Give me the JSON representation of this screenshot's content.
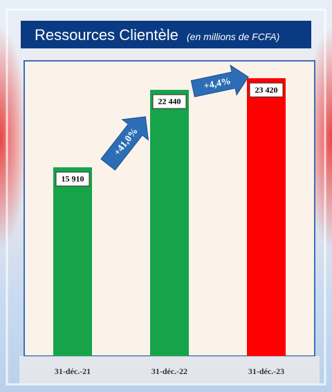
{
  "chart_data": {
    "type": "bar",
    "title": "Ressources Clientèle",
    "subtitle": "(en millions de FCFA)",
    "categories": [
      "31-déc.-21",
      "31-déc.-22",
      "31-déc.-23"
    ],
    "values": [
      15910,
      22440,
      23420
    ],
    "value_labels": [
      "15 910",
      "22 440",
      "23 420"
    ],
    "colors": [
      "#17a34a",
      "#17a34a",
      "#ff0000"
    ],
    "ylim": [
      0,
      25000
    ],
    "annotations": [
      "+41,0%",
      "+4,4%"
    ]
  }
}
